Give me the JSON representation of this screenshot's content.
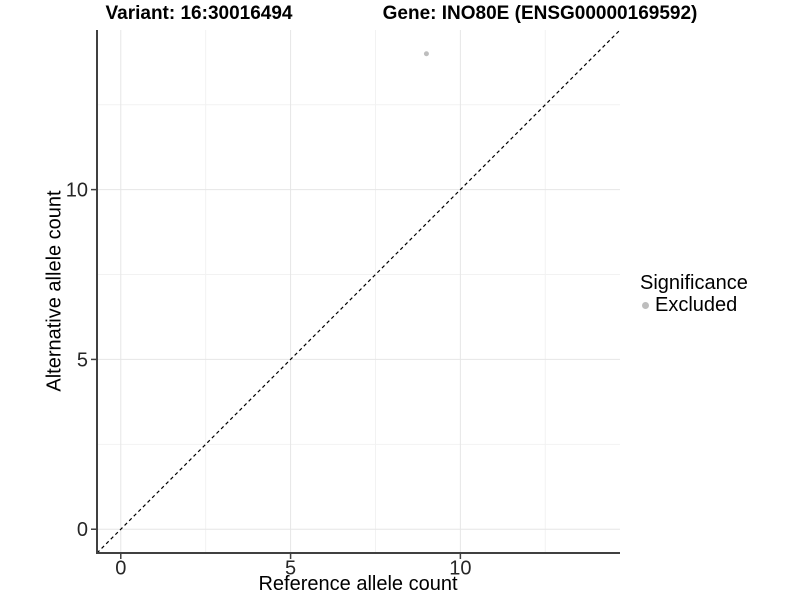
{
  "chart_data": {
    "type": "scatter",
    "titles": {
      "left": "Variant: 16:30016494",
      "right": "Gene: INO80E (ENSG00000169592)"
    },
    "xlabel": "Reference allele count",
    "ylabel": "Alternative allele count",
    "xlim": [
      -0.7,
      14.7
    ],
    "ylim": [
      -0.7,
      14.7
    ],
    "x_ticks": {
      "major": [
        0,
        5,
        10
      ],
      "minor": [
        2.5,
        7.5,
        12.5
      ],
      "labels": [
        "0",
        "5",
        "10"
      ]
    },
    "y_ticks": {
      "major": [
        0,
        5,
        10
      ],
      "minor": [
        2.5,
        7.5,
        12.5
      ],
      "labels": [
        "0",
        "5",
        "10"
      ]
    },
    "grid": "major and minor gridlines, light grey",
    "reference_line": {
      "kind": "identity y=x",
      "style": "dashed",
      "color": "#000000"
    },
    "series": [
      {
        "name": "Excluded",
        "color": "#bebebe",
        "point_radius": 2.5,
        "points": [
          [
            9,
            14
          ]
        ]
      }
    ],
    "legend": {
      "title": "Significance",
      "position": "right",
      "items": [
        {
          "label": "Excluded",
          "color": "#bebebe"
        }
      ]
    }
  },
  "colors": {
    "background": "#ffffff",
    "axis": "#404040",
    "tick_label": "#262626",
    "grid_major": "#e6e6e6",
    "grid_minor": "#f2f2f2",
    "title": "#000000"
  }
}
